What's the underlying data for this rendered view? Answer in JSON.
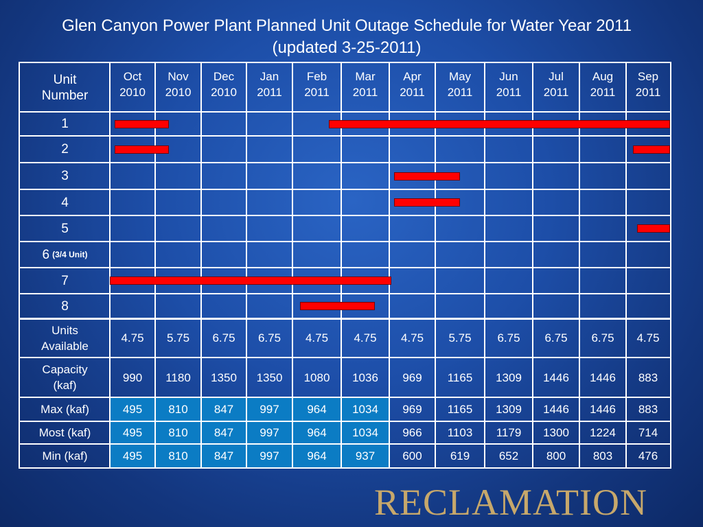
{
  "title_line1": "Glen Canyon Power Plant Planned Unit Outage Schedule for Water Year 2011",
  "title_line2": "(updated 3-25-2011)",
  "header": {
    "unit_label": "Unit\nNumber",
    "months": [
      "Oct\n2010",
      "Nov\n2010",
      "Dec\n2010",
      "Jan\n2011",
      "Feb\n2011",
      "Mar\n2011",
      "Apr\n2011",
      "May\n2011",
      "Jun\n2011",
      "Jul\n2011",
      "Aug\n2011",
      "Sep\n2011"
    ]
  },
  "units": [
    {
      "label": "1",
      "note": ""
    },
    {
      "label": "2",
      "note": ""
    },
    {
      "label": "3",
      "note": ""
    },
    {
      "label": "4",
      "note": ""
    },
    {
      "label": "5",
      "note": ""
    },
    {
      "label": "6",
      "note": "(3/4 Unit)"
    },
    {
      "label": "7",
      "note": ""
    },
    {
      "label": "8",
      "note": ""
    }
  ],
  "outages": [
    {
      "unit": 0,
      "start": 0.1,
      "end": 1.3
    },
    {
      "unit": 0,
      "start": 4.75,
      "end": 12.0
    },
    {
      "unit": 1,
      "start": 0.1,
      "end": 1.3
    },
    {
      "unit": 1,
      "start": 11.15,
      "end": 12.0
    },
    {
      "unit": 2,
      "start": 6.1,
      "end": 7.5
    },
    {
      "unit": 3,
      "start": 6.1,
      "end": 7.5
    },
    {
      "unit": 4,
      "start": 11.25,
      "end": 12.0
    },
    {
      "unit": 6,
      "start": 0.0,
      "end": 6.05
    },
    {
      "unit": 7,
      "start": 4.15,
      "end": 5.7
    }
  ],
  "stats": [
    {
      "label": "Units\nAvailable",
      "values": [
        "4.75",
        "5.75",
        "6.75",
        "6.75",
        "4.75",
        "4.75",
        "4.75",
        "5.75",
        "6.75",
        "6.75",
        "6.75",
        "4.75"
      ]
    },
    {
      "label": "Capacity\n(kaf)",
      "values": [
        "990",
        "1180",
        "1350",
        "1350",
        "1080",
        "1036",
        "969",
        "1165",
        "1309",
        "1446",
        "1446",
        "883"
      ]
    },
    {
      "label": "Max (kaf)",
      "values": [
        "495",
        "810",
        "847",
        "997",
        "964",
        "1034",
        "969",
        "1165",
        "1309",
        "1446",
        "1446",
        "883"
      ]
    },
    {
      "label": "Most (kaf)",
      "values": [
        "495",
        "810",
        "847",
        "997",
        "964",
        "1034",
        "966",
        "1103",
        "1179",
        "1300",
        "1224",
        "714"
      ]
    },
    {
      "label": "Min (kaf)",
      "values": [
        "495",
        "810",
        "847",
        "997",
        "964",
        "937",
        "600",
        "619",
        "652",
        "800",
        "803",
        "476"
      ]
    }
  ],
  "highlight_months": 6,
  "highlight_color": "#0b7cc4",
  "bar_color": "#ff0000",
  "logo_text": "RECLAMATION"
}
